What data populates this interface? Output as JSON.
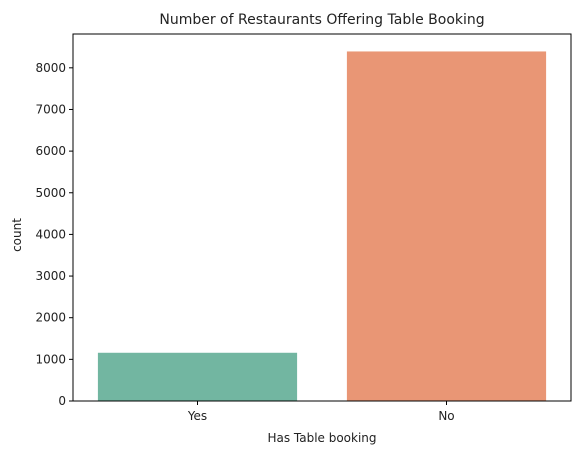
{
  "chart_data": {
    "type": "bar",
    "title": "Number of Restaurants Offering Table Booking",
    "xlabel": "Has Table booking",
    "ylabel": "count",
    "categories": [
      "Yes",
      "No"
    ],
    "values": [
      1158,
      8393
    ],
    "colors": [
      "#72b6a1",
      "#e99675"
    ],
    "ylim": [
      0,
      8812
    ],
    "yticks": [
      0,
      1000,
      2000,
      3000,
      4000,
      5000,
      6000,
      7000,
      8000
    ],
    "grid": false,
    "legend": "none"
  }
}
